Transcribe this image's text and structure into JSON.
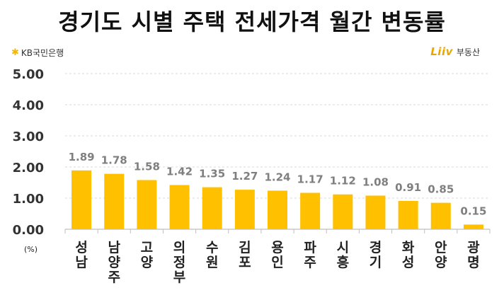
{
  "title": "경기도 시별 주택 전세가격 월간 변동률",
  "logos": {
    "left": "KB국민은행",
    "right_mark": "Liiv",
    "right_text": "부동산"
  },
  "unit": "(%)",
  "colors": {
    "bar": "#FFC000",
    "value_label": "#7f7f7f",
    "axis": "#bfbfbf",
    "grid": "#d9d9d9"
  },
  "chart_data": {
    "type": "bar",
    "title": "경기도 시별 주택 전세가격 월간 변동률",
    "categories": [
      "성남",
      "남양주",
      "고양",
      "의정부",
      "수원",
      "김포",
      "용인",
      "파주",
      "시흥",
      "경기",
      "화성",
      "안양",
      "광명"
    ],
    "values": [
      1.89,
      1.78,
      1.58,
      1.42,
      1.35,
      1.27,
      1.24,
      1.17,
      1.12,
      1.08,
      0.91,
      0.85,
      0.15
    ],
    "value_labels": [
      "1.89",
      "1.78",
      "1.58",
      "1.42",
      "1.35",
      "1.27",
      "1.24",
      "1.17",
      "1.12",
      "1.08",
      "0.91",
      "0.85",
      "0.15"
    ],
    "y_ticks": [
      "0.00",
      "1.00",
      "2.00",
      "3.00",
      "4.00",
      "5.00"
    ],
    "ylim": [
      0,
      5
    ],
    "grid": true,
    "ylabel": "(%)",
    "xlabel": ""
  }
}
